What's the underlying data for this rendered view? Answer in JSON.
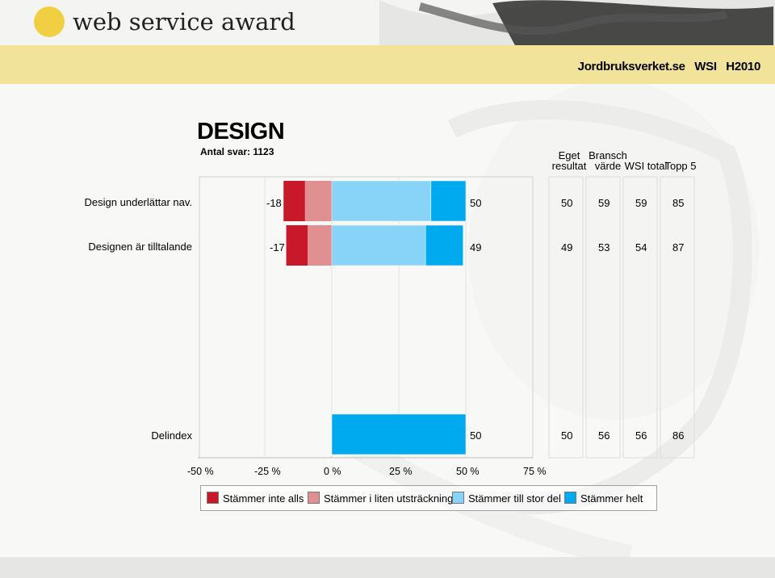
{
  "brand": {
    "logo_text": "web service award"
  },
  "header": {
    "title": "Jordbruksverket.se   WSI   H2010"
  },
  "chart_data": {
    "type": "bar",
    "title": "DESIGN",
    "subtitle": "Antal svar: 1123",
    "categories": [
      "Design underlättar nav.",
      "Designen är tilltalande",
      "Delindex"
    ],
    "series": [
      {
        "name": "Stämmer inte alls",
        "values": [
          -8,
          -8,
          0
        ]
      },
      {
        "name": "Stämmer i liten utsträckning",
        "values": [
          -10,
          -9,
          0
        ]
      },
      {
        "name": "Stämmer till stor del",
        "values": [
          37,
          35,
          0
        ]
      },
      {
        "name": "Stämmer helt",
        "values": [
          13,
          14,
          50
        ]
      }
    ],
    "negative_totals": [
      "-18",
      "-17",
      ""
    ],
    "positive_totals": [
      "50",
      "49",
      "50"
    ],
    "xlim": [
      -50,
      75
    ],
    "x_ticks": [
      "-50 %",
      "-25 %",
      "0 %",
      "25 %",
      "50 %",
      "75 %"
    ],
    "table": {
      "columns": [
        {
          "line1": "Eget",
          "line2": "resultat"
        },
        {
          "line1": "Bransch",
          "line2": "värde"
        },
        {
          "line1": "",
          "line2": "WSI total"
        },
        {
          "line1": "",
          "line2": "Topp 5"
        }
      ],
      "rows": [
        [
          "50",
          "59",
          "59",
          "85"
        ],
        [
          "49",
          "53",
          "54",
          "87"
        ],
        [
          "50",
          "56",
          "56",
          "86"
        ]
      ]
    },
    "colors": [
      "#c8192a",
      "#e09090",
      "#88d4f8",
      "#00aaee"
    ],
    "legend_position": "bottom"
  }
}
